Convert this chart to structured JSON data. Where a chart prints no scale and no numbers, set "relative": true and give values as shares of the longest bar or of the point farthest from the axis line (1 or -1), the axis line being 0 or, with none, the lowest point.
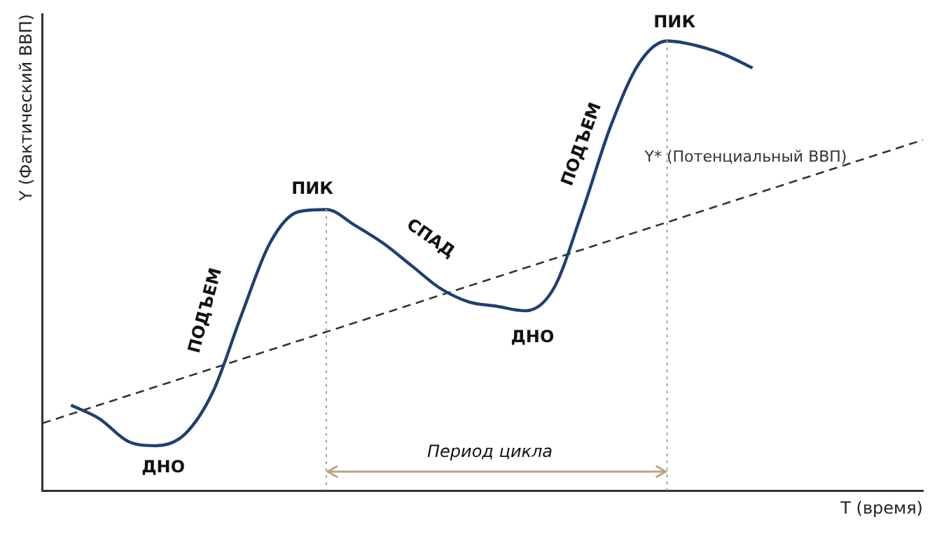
{
  "chart_data": {
    "type": "line",
    "relative": true,
    "ylabel": "Y (Фактический ВВП)",
    "xlabel": "T (время)",
    "tick_labels": false,
    "grid": false,
    "legend": false,
    "marker": "none",
    "categories": [
      null,
      null,
      null,
      null,
      null,
      null,
      null,
      null,
      null,
      null,
      null,
      null,
      null,
      null,
      null,
      null,
      null,
      null,
      null,
      null,
      null,
      null,
      null,
      null,
      null,
      null,
      null,
      null,
      null,
      null,
      null,
      null
    ],
    "series": [
      {
        "color": "#1f3f73",
        "line_style": "solid",
        "values": [
          null,
          0.19,
          0.16,
          0.11,
          0.1,
          0.125,
          0.22,
          0.39,
          0.55,
          0.62,
          0.625,
          0.59,
          0.55,
          0.5,
          0.45,
          0.42,
          0.41,
          0.4,
          0.45,
          0.62,
          0.81,
          0.95,
          1.0,
          0.99,
          0.97,
          0.94,
          null,
          null,
          null,
          null,
          null,
          null
        ]
      },
      {
        "name": "Y* (Потенциальный ВВП)",
        "color": "#333333",
        "line_style": "dashed",
        "values": [
          0.15,
          null,
          null,
          null,
          null,
          null,
          null,
          null,
          null,
          null,
          null,
          null,
          null,
          null,
          null,
          null,
          null,
          null,
          null,
          null,
          null,
          null,
          null,
          null,
          null,
          null,
          null,
          null,
          null,
          null,
          null,
          0.78
        ]
      }
    ],
    "annotations": [
      "ДНО",
      "ПОДЪЕМ",
      "ПИК",
      "СПАД",
      "ДНО",
      "ПОДЪЕМ",
      "ПИК",
      "Период цикла"
    ]
  }
}
